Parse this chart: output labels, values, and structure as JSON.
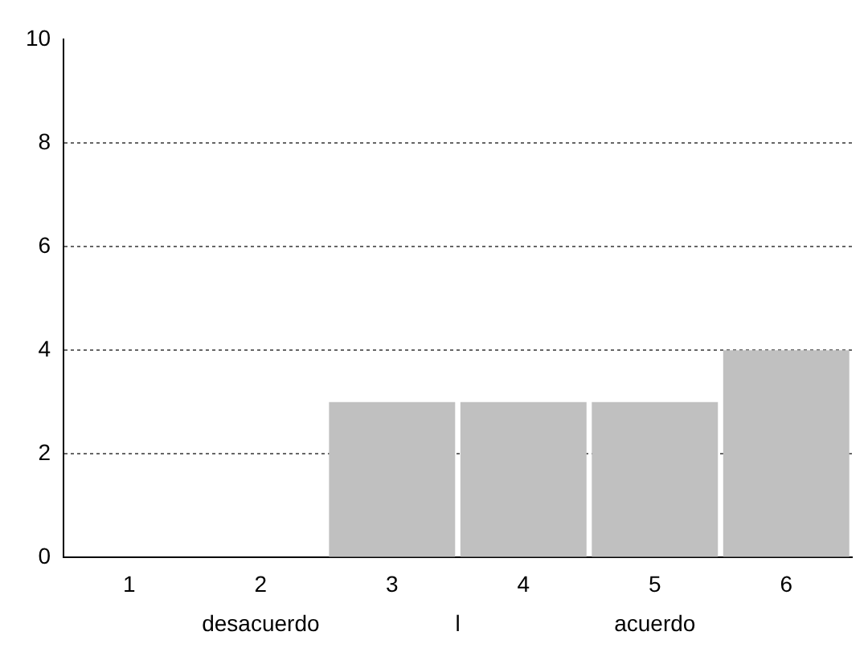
{
  "chart_data": {
    "type": "bar",
    "categories": [
      "1",
      "2",
      "3",
      "4",
      "5",
      "6"
    ],
    "values": [
      0,
      0,
      3,
      3,
      3,
      4
    ],
    "color": "#c0c0c0",
    "ylim": [
      0,
      10
    ],
    "yticks": [
      0,
      2,
      4,
      6,
      8,
      10
    ],
    "grid": "y",
    "line_style": "dotted",
    "legend": false,
    "annotations": [
      "desacuerdo",
      "l",
      "acuerdo"
    ]
  }
}
